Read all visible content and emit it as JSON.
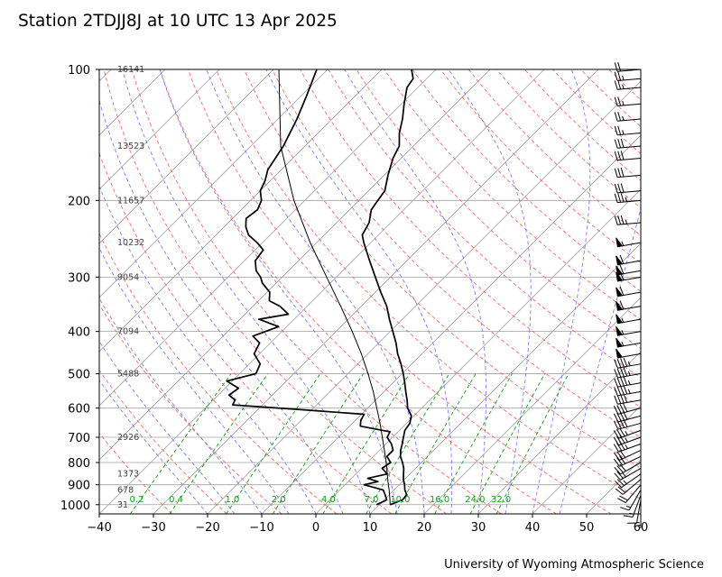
{
  "header": {
    "title": "Station 2TDJJ8J at 10 UTC 13 Apr 2025",
    "credit": "University of Wyoming Atmospheric Science"
  },
  "colors": {
    "isotherm": "#a0a0a0",
    "isobar": "#a0a0a0",
    "dry_adiabat": "#ff4d4d",
    "moist_adiabat": "#6666ff",
    "mixing_ratio": "#1a9a1a",
    "profile": "#000000",
    "height_label": "#444444"
  },
  "chart_data": {
    "type": "skew-t",
    "xlim": [
      -40,
      60
    ],
    "ylim": [
      1050,
      100
    ],
    "y_scale": "log",
    "grid": true,
    "x_ticks": [
      "−40",
      "−30",
      "−20",
      "−10",
      "0",
      "10",
      "20",
      "30",
      "40",
      "50",
      "60"
    ],
    "y_ticks": [
      "100",
      "200",
      "300",
      "400",
      "500",
      "600",
      "700",
      "800",
      "900",
      "1000"
    ],
    "height_labels": [
      {
        "p": 100,
        "text": "16141"
      },
      {
        "p": 150,
        "text": "13523"
      },
      {
        "p": 200,
        "text": "11657"
      },
      {
        "p": 250,
        "text": "10232"
      },
      {
        "p": 300,
        "text": "9054"
      },
      {
        "p": 400,
        "text": "7094"
      },
      {
        "p": 500,
        "text": "5488"
      },
      {
        "p": 700,
        "text": "2926"
      },
      {
        "p": 850,
        "text": "1373"
      },
      {
        "p": 925,
        "text": "678"
      },
      {
        "p": 1000,
        "text": "31"
      }
    ],
    "mixing_ratio_labels": [
      "0.2",
      "0.4",
      "1.0",
      "2.0",
      "4.0",
      "7.0",
      "10.0",
      "16.0",
      "24.0",
      "32.0"
    ],
    "temperature_profile": [
      {
        "p": 1000,
        "t": 12.0
      },
      {
        "p": 975,
        "t": 13.4
      },
      {
        "p": 950,
        "t": 13.3
      },
      {
        "p": 925,
        "t": 12.0
      },
      {
        "p": 900,
        "t": 11.0
      },
      {
        "p": 875,
        "t": 9.8
      },
      {
        "p": 850,
        "t": 8.8
      },
      {
        "p": 825,
        "t": 7.8
      },
      {
        "p": 800,
        "t": 6.5
      },
      {
        "p": 775,
        "t": 5.0
      },
      {
        "p": 750,
        "t": 3.9
      },
      {
        "p": 725,
        "t": 3.0
      },
      {
        "p": 700,
        "t": 2.0
      },
      {
        "p": 675,
        "t": 1.0
      },
      {
        "p": 650,
        "t": 0.6
      },
      {
        "p": 625,
        "t": -0.5
      },
      {
        "p": 600,
        "t": -2.6
      },
      {
        "p": 575,
        "t": -4.2
      },
      {
        "p": 550,
        "t": -6.0
      },
      {
        "p": 525,
        "t": -7.8
      },
      {
        "p": 500,
        "t": -9.8
      },
      {
        "p": 475,
        "t": -12.0
      },
      {
        "p": 450,
        "t": -14.5
      },
      {
        "p": 425,
        "t": -16.8
      },
      {
        "p": 400,
        "t": -19.5
      },
      {
        "p": 375,
        "t": -22.4
      },
      {
        "p": 350,
        "t": -25.3
      },
      {
        "p": 325,
        "t": -29.0
      },
      {
        "p": 300,
        "t": -32.8
      },
      {
        "p": 275,
        "t": -36.9
      },
      {
        "p": 250,
        "t": -41.3
      },
      {
        "p": 240,
        "t": -43.0
      },
      {
        "p": 225,
        "t": -44.0
      },
      {
        "p": 210,
        "t": -46.0
      },
      {
        "p": 200,
        "t": -46.5
      },
      {
        "p": 190,
        "t": -47.0
      },
      {
        "p": 175,
        "t": -49.3
      },
      {
        "p": 160,
        "t": -51.5
      },
      {
        "p": 150,
        "t": -52.6
      },
      {
        "p": 140,
        "t": -55.0
      },
      {
        "p": 130,
        "t": -57.0
      },
      {
        "p": 120,
        "t": -59.5
      },
      {
        "p": 110,
        "t": -62.0
      },
      {
        "p": 105,
        "t": -62.5
      },
      {
        "p": 100,
        "t": -64.5
      }
    ],
    "dewpoint_profile": [
      {
        "p": 1000,
        "t": 9.5
      },
      {
        "p": 975,
        "t": 10.5
      },
      {
        "p": 950,
        "t": 9.3
      },
      {
        "p": 925,
        "t": 8.0
      },
      {
        "p": 900,
        "t": 3.5
      },
      {
        "p": 885,
        "t": 5.5
      },
      {
        "p": 870,
        "t": 3.0
      },
      {
        "p": 850,
        "t": 5.8
      },
      {
        "p": 825,
        "t": 3.8
      },
      {
        "p": 800,
        "t": 4.3
      },
      {
        "p": 775,
        "t": 2.5
      },
      {
        "p": 750,
        "t": 2.5
      },
      {
        "p": 725,
        "t": 1.0
      },
      {
        "p": 700,
        "t": -1.0
      },
      {
        "p": 680,
        "t": -1.5
      },
      {
        "p": 660,
        "t": -8.0
      },
      {
        "p": 640,
        "t": -9.0
      },
      {
        "p": 620,
        "t": -9.5
      },
      {
        "p": 605,
        "t": -22.0
      },
      {
        "p": 590,
        "t": -35.5
      },
      {
        "p": 575,
        "t": -36.0
      },
      {
        "p": 560,
        "t": -38.0
      },
      {
        "p": 540,
        "t": -37.5
      },
      {
        "p": 520,
        "t": -41.0
      },
      {
        "p": 500,
        "t": -37.0
      },
      {
        "p": 475,
        "t": -38.0
      },
      {
        "p": 450,
        "t": -41.0
      },
      {
        "p": 425,
        "t": -42.0
      },
      {
        "p": 410,
        "t": -44.5
      },
      {
        "p": 390,
        "t": -41.5
      },
      {
        "p": 375,
        "t": -46.5
      },
      {
        "p": 365,
        "t": -42.0
      },
      {
        "p": 350,
        "t": -45.0
      },
      {
        "p": 340,
        "t": -48.0
      },
      {
        "p": 325,
        "t": -49.5
      },
      {
        "p": 310,
        "t": -52.5
      },
      {
        "p": 300,
        "t": -54.0
      },
      {
        "p": 290,
        "t": -56.0
      },
      {
        "p": 275,
        "t": -58.0
      },
      {
        "p": 260,
        "t": -58.5
      },
      {
        "p": 250,
        "t": -61.0
      },
      {
        "p": 240,
        "t": -64.0
      },
      {
        "p": 230,
        "t": -66.0
      },
      {
        "p": 220,
        "t": -67.5
      },
      {
        "p": 210,
        "t": -67.0
      },
      {
        "p": 200,
        "t": -68.0
      },
      {
        "p": 190,
        "t": -70.0
      },
      {
        "p": 180,
        "t": -71.0
      },
      {
        "p": 170,
        "t": -72.5
      },
      {
        "p": 150,
        "t": -74.0
      },
      {
        "p": 130,
        "t": -76.5
      },
      {
        "p": 115,
        "t": -79.0
      },
      {
        "p": 100,
        "t": -82.0
      }
    ],
    "parcel_profile": [
      {
        "p": 1000,
        "t": 12.0
      },
      {
        "p": 975,
        "t": 11.1
      },
      {
        "p": 950,
        "t": 10.1
      },
      {
        "p": 925,
        "t": 9.1
      },
      {
        "p": 900,
        "t": 8.0
      },
      {
        "p": 850,
        "t": 5.8
      },
      {
        "p": 800,
        "t": 3.5
      },
      {
        "p": 750,
        "t": 0.9
      },
      {
        "p": 700,
        "t": -1.9
      },
      {
        "p": 650,
        "t": -4.9
      },
      {
        "p": 600,
        "t": -8.3
      },
      {
        "p": 550,
        "t": -12.0
      },
      {
        "p": 500,
        "t": -16.3
      },
      {
        "p": 450,
        "t": -21.2
      },
      {
        "p": 400,
        "t": -27.0
      },
      {
        "p": 350,
        "t": -33.8
      },
      {
        "p": 300,
        "t": -41.8
      },
      {
        "p": 250,
        "t": -51.2
      },
      {
        "p": 200,
        "t": -62.0
      },
      {
        "p": 150,
        "t": -74.5
      },
      {
        "p": 100,
        "t": -89.0
      }
    ],
    "wind_barbs": [
      {
        "p": 1000,
        "dir": 180,
        "kt": 5
      },
      {
        "p": 975,
        "dir": 190,
        "kt": 10
      },
      {
        "p": 950,
        "dir": 200,
        "kt": 15
      },
      {
        "p": 925,
        "dir": 210,
        "kt": 15
      },
      {
        "p": 900,
        "dir": 220,
        "kt": 20
      },
      {
        "p": 875,
        "dir": 230,
        "kt": 20
      },
      {
        "p": 850,
        "dir": 235,
        "kt": 25
      },
      {
        "p": 825,
        "dir": 240,
        "kt": 25
      },
      {
        "p": 800,
        "dir": 240,
        "kt": 30
      },
      {
        "p": 775,
        "dir": 245,
        "kt": 30
      },
      {
        "p": 750,
        "dir": 245,
        "kt": 30
      },
      {
        "p": 725,
        "dir": 250,
        "kt": 35
      },
      {
        "p": 700,
        "dir": 250,
        "kt": 35
      },
      {
        "p": 675,
        "dir": 250,
        "kt": 35
      },
      {
        "p": 650,
        "dir": 255,
        "kt": 40
      },
      {
        "p": 625,
        "dir": 255,
        "kt": 40
      },
      {
        "p": 600,
        "dir": 255,
        "kt": 40
      },
      {
        "p": 575,
        "dir": 260,
        "kt": 40
      },
      {
        "p": 550,
        "dir": 260,
        "kt": 45
      },
      {
        "p": 525,
        "dir": 260,
        "kt": 45
      },
      {
        "p": 500,
        "dir": 260,
        "kt": 45
      },
      {
        "p": 475,
        "dir": 260,
        "kt": 45
      },
      {
        "p": 450,
        "dir": 260,
        "kt": 50
      },
      {
        "p": 425,
        "dir": 260,
        "kt": 55
      },
      {
        "p": 400,
        "dir": 260,
        "kt": 55
      },
      {
        "p": 375,
        "dir": 260,
        "kt": 55
      },
      {
        "p": 350,
        "dir": 260,
        "kt": 60
      },
      {
        "p": 325,
        "dir": 260,
        "kt": 60
      },
      {
        "p": 300,
        "dir": 260,
        "kt": 60
      },
      {
        "p": 290,
        "dir": 260,
        "kt": 60
      },
      {
        "p": 275,
        "dir": 260,
        "kt": 60
      },
      {
        "p": 250,
        "dir": 260,
        "kt": 55
      },
      {
        "p": 225,
        "dir": 265,
        "kt": 35
      },
      {
        "p": 200,
        "dir": 265,
        "kt": 35
      },
      {
        "p": 190,
        "dir": 265,
        "kt": 30
      },
      {
        "p": 175,
        "dir": 265,
        "kt": 30
      },
      {
        "p": 160,
        "dir": 265,
        "kt": 30
      },
      {
        "p": 150,
        "dir": 265,
        "kt": 30
      },
      {
        "p": 140,
        "dir": 265,
        "kt": 25
      },
      {
        "p": 130,
        "dir": 265,
        "kt": 25
      },
      {
        "p": 120,
        "dir": 265,
        "kt": 25
      },
      {
        "p": 110,
        "dir": 265,
        "kt": 25
      },
      {
        "p": 105,
        "dir": 265,
        "kt": 25
      },
      {
        "p": 100,
        "dir": 265,
        "kt": 20
      }
    ]
  }
}
